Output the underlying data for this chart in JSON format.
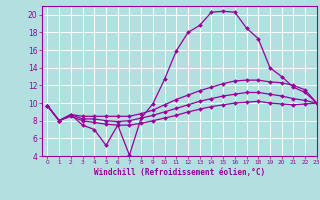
{
  "background_color": "#b2e0e0",
  "grid_color": "#ffffff",
  "line_color": "#990099",
  "xlabel": "Windchill (Refroidissement éolien,°C)",
  "xlim": [
    -0.5,
    23
  ],
  "ylim": [
    4,
    21
  ],
  "yticks": [
    4,
    6,
    8,
    10,
    12,
    14,
    16,
    18,
    20
  ],
  "xticks": [
    0,
    1,
    2,
    3,
    4,
    5,
    6,
    7,
    8,
    9,
    10,
    11,
    12,
    13,
    14,
    15,
    16,
    17,
    18,
    19,
    20,
    21,
    22,
    23
  ],
  "series": {
    "line1": {
      "x": [
        0,
        1,
        2,
        3,
        4,
        5,
        6,
        7,
        8,
        9,
        10,
        11,
        12,
        13,
        14,
        15,
        16,
        17,
        18,
        19,
        20,
        21,
        22,
        23
      ],
      "y": [
        9.7,
        8.0,
        8.7,
        7.5,
        7.0,
        5.2,
        7.5,
        4.1,
        8.3,
        9.9,
        12.7,
        15.9,
        18.0,
        18.8,
        20.3,
        20.4,
        20.3,
        18.5,
        17.3,
        14.0,
        13.0,
        11.8,
        11.2,
        10.0
      ]
    },
    "line2": {
      "x": [
        0,
        1,
        2,
        3,
        4,
        5,
        6,
        7,
        8,
        9,
        10,
        11,
        12,
        13,
        14,
        15,
        16,
        17,
        18,
        19,
        20,
        21,
        22,
        23
      ],
      "y": [
        9.7,
        8.0,
        8.7,
        8.5,
        8.5,
        8.5,
        8.5,
        8.5,
        8.8,
        9.2,
        9.8,
        10.4,
        10.9,
        11.4,
        11.8,
        12.2,
        12.5,
        12.6,
        12.6,
        12.4,
        12.3,
        12.0,
        11.5,
        10.0
      ]
    },
    "line3": {
      "x": [
        0,
        1,
        2,
        3,
        4,
        5,
        6,
        7,
        8,
        9,
        10,
        11,
        12,
        13,
        14,
        15,
        16,
        17,
        18,
        19,
        20,
        21,
        22,
        23
      ],
      "y": [
        9.7,
        8.0,
        8.7,
        8.2,
        8.2,
        8.0,
        7.9,
        8.0,
        8.3,
        8.6,
        9.0,
        9.4,
        9.8,
        10.2,
        10.5,
        10.8,
        11.0,
        11.2,
        11.2,
        11.0,
        10.8,
        10.5,
        10.3,
        10.0
      ]
    },
    "line4": {
      "x": [
        0,
        1,
        2,
        3,
        4,
        5,
        6,
        7,
        8,
        9,
        10,
        11,
        12,
        13,
        14,
        15,
        16,
        17,
        18,
        19,
        20,
        21,
        22,
        23
      ],
      "y": [
        9.7,
        8.0,
        8.5,
        8.0,
        7.8,
        7.6,
        7.5,
        7.5,
        7.7,
        8.0,
        8.3,
        8.6,
        9.0,
        9.3,
        9.6,
        9.8,
        10.0,
        10.1,
        10.2,
        10.0,
        9.9,
        9.8,
        9.9,
        10.0
      ]
    }
  }
}
